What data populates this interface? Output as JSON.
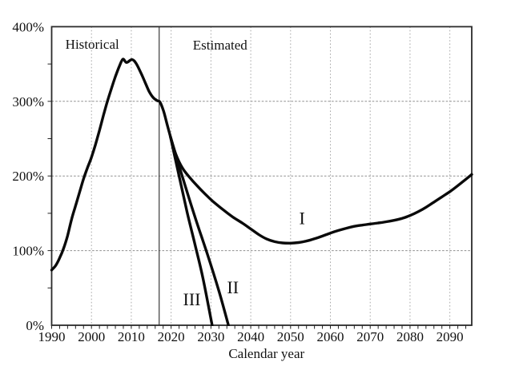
{
  "figure": {
    "background": "#ffffff"
  },
  "chart_data": {
    "type": "line",
    "title": "",
    "xlabel": "Calendar year",
    "ylabel": "",
    "x_domain": [
      1990,
      2095.5
    ],
    "y_domain": [
      0,
      400
    ],
    "x_ticks": {
      "values": [
        1990,
        2000,
        2010,
        2020,
        2030,
        2040,
        2050,
        2060,
        2070,
        2080,
        2090
      ],
      "labels": [
        "1990",
        "2000",
        "2010",
        "2020",
        "2030",
        "2040",
        "2050",
        "2060",
        "2070",
        "2080",
        "2090"
      ],
      "minor_step": 2
    },
    "y_ticks": {
      "values": [
        0,
        100,
        200,
        300,
        400
      ],
      "labels": [
        "0%",
        "100%",
        "200%",
        "300%",
        "400%"
      ],
      "minor_step": 50
    },
    "grid": {
      "show": true,
      "x_at": [
        2000,
        2010,
        2020,
        2030,
        2040,
        2050,
        2060,
        2070,
        2080,
        2090
      ],
      "y_at": [
        100,
        200,
        300
      ]
    },
    "divider": {
      "x": 2017
    },
    "region_labels": [
      {
        "id": "historical",
        "text": "Historical",
        "x": 2000.2,
        "y": 377
      },
      {
        "id": "estimated",
        "text": "Estimated",
        "x": 2032.3,
        "y": 376
      }
    ],
    "series": [
      {
        "name": "historical",
        "label": "",
        "points": [
          [
            1990,
            74
          ],
          [
            1991,
            80
          ],
          [
            1992,
            90
          ],
          [
            1993,
            103
          ],
          [
            1994,
            120
          ],
          [
            1995,
            142
          ],
          [
            1996,
            160
          ],
          [
            1997,
            178
          ],
          [
            1998,
            196
          ],
          [
            1999,
            211
          ],
          [
            2000,
            225
          ],
          [
            2001,
            242
          ],
          [
            2002,
            261
          ],
          [
            2003,
            281
          ],
          [
            2004,
            300
          ],
          [
            2005,
            317
          ],
          [
            2006,
            333
          ],
          [
            2007,
            347
          ],
          [
            2007.9,
            356.5
          ],
          [
            2008.8,
            352
          ],
          [
            2010.2,
            356
          ],
          [
            2011.3,
            350
          ],
          [
            2012.5,
            337
          ],
          [
            2013.5,
            325
          ],
          [
            2014.5,
            313
          ],
          [
            2015.5,
            305
          ],
          [
            2016.5,
            301
          ],
          [
            2017.2,
            299
          ],
          [
            2018.1,
            287
          ],
          [
            2019,
            269
          ],
          [
            2019.8,
            253
          ]
        ]
      },
      {
        "name": "alternative-I",
        "label": "I",
        "label_pos": {
          "x": 2052.9,
          "y": 143.5
        },
        "points": [
          [
            2019.8,
            253
          ],
          [
            2021.2,
            229
          ],
          [
            2022.8,
            211
          ],
          [
            2024.5,
            199
          ],
          [
            2026.5,
            187
          ],
          [
            2028.5,
            176
          ],
          [
            2030.5,
            166
          ],
          [
            2033,
            155
          ],
          [
            2035.5,
            145
          ],
          [
            2038,
            136.5
          ],
          [
            2040,
            129
          ],
          [
            2042,
            121.5
          ],
          [
            2044,
            115.5
          ],
          [
            2046,
            112
          ],
          [
            2048,
            110.3
          ],
          [
            2050,
            110
          ],
          [
            2052,
            110.8
          ],
          [
            2054,
            112.8
          ],
          [
            2056,
            115.8
          ],
          [
            2058,
            119.5
          ],
          [
            2060,
            123.5
          ],
          [
            2062,
            127
          ],
          [
            2064,
            130
          ],
          [
            2066,
            132.5
          ],
          [
            2068,
            134.2
          ],
          [
            2070,
            135.6
          ],
          [
            2072,
            137
          ],
          [
            2074,
            138.6
          ],
          [
            2076,
            140.6
          ],
          [
            2078,
            143.2
          ],
          [
            2080,
            147
          ],
          [
            2082,
            152
          ],
          [
            2084,
            158
          ],
          [
            2086,
            165
          ],
          [
            2088,
            172
          ],
          [
            2090,
            179
          ],
          [
            2092,
            187
          ],
          [
            2094,
            195.5
          ],
          [
            2095.5,
            202
          ]
        ]
      },
      {
        "name": "alternative-II",
        "label": "II",
        "label_pos": {
          "x": 2035.5,
          "y": 51
        },
        "points": [
          [
            2019.8,
            253
          ],
          [
            2023,
            196
          ],
          [
            2026,
            145
          ],
          [
            2029,
            97
          ],
          [
            2032,
            46
          ],
          [
            2034.4,
            0
          ]
        ]
      },
      {
        "name": "alternative-III",
        "label": "III",
        "label_pos": {
          "x": 2025.2,
          "y": 35
        },
        "points": [
          [
            2019.8,
            253
          ],
          [
            2022,
            200
          ],
          [
            2024,
            152
          ],
          [
            2026,
            108
          ],
          [
            2028,
            63
          ],
          [
            2030.3,
            0
          ]
        ]
      }
    ],
    "colors": {
      "line": "#0a0a0a",
      "grid_vertical": "#a8a8a8",
      "grid_horizontal": "#8f8f8f",
      "frame": "#2b2b2b",
      "divider": "#3a3a3a",
      "text": "#111111",
      "background": "#ffffff"
    },
    "legend": "none"
  }
}
